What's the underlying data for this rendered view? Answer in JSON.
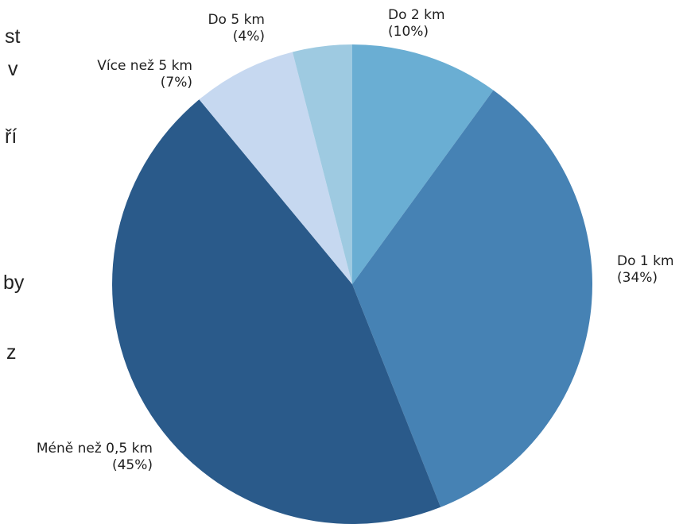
{
  "background_text": [
    "st",
    "v",
    "ří",
    "by",
    "z"
  ],
  "chart_data": {
    "type": "pie",
    "title": "",
    "start_angle_deg": 0,
    "direction": "clockwise",
    "slices": [
      {
        "label": "Do 2 km",
        "percent_label": "(10%)",
        "value": 10,
        "color": "#6aaed3"
      },
      {
        "label": "Do 1 km",
        "percent_label": "(34%)",
        "value": 34,
        "color": "#4682b4"
      },
      {
        "label": "Méně než 0,5 km",
        "percent_label": "(45%)",
        "value": 45,
        "color": "#2a5a8a"
      },
      {
        "label": "Více než 5 km",
        "percent_label": "(7%)",
        "value": 7,
        "color": "#c6d8f0"
      },
      {
        "label": "Do 5 km",
        "percent_label": "(4%)",
        "value": 4,
        "color": "#9ecae1"
      }
    ]
  }
}
